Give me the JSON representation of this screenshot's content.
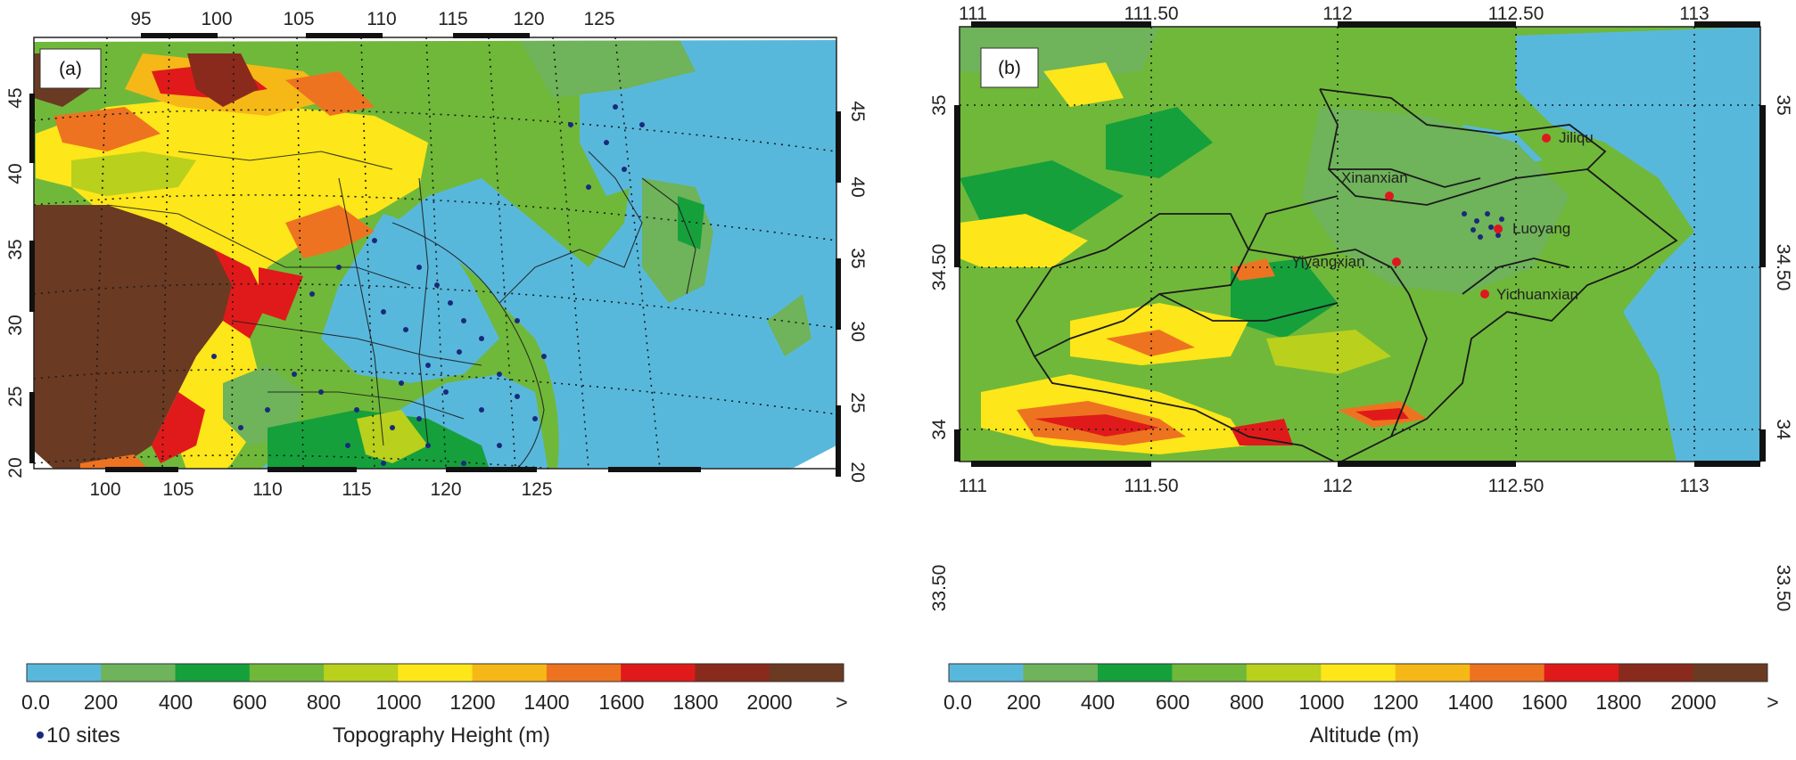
{
  "panels": [
    {
      "id": "a",
      "label": "(a)",
      "top_ticks": [
        "95",
        "100",
        "105",
        "110",
        "115",
        "120",
        "125"
      ],
      "bottom_ticks": [
        "100",
        "105",
        "110",
        "115",
        "120",
        "125"
      ],
      "left_ticks": [
        "45",
        "40",
        "35",
        "30",
        "25",
        "20"
      ],
      "right_ticks": [
        "45",
        "40",
        "35",
        "30",
        "25",
        "20"
      ],
      "colorbar_labels": [
        "0.0",
        "200",
        "400",
        "600",
        "800",
        "1000",
        "1200",
        "1400",
        "1600",
        "1800",
        "2000",
        ">"
      ],
      "colorbar_title": "Topography Height (m)",
      "legend_marker_label": "10 sites"
    },
    {
      "id": "b",
      "label": "(b)",
      "top_ticks": [
        "111",
        "111.50",
        "112",
        "112.50",
        "113"
      ],
      "bottom_ticks": [
        "111",
        "111.50",
        "112",
        "112.50",
        "113"
      ],
      "left_ticks": [
        "35",
        "34.50",
        "34",
        "33.50"
      ],
      "right_ticks": [
        "35",
        "34.50",
        "34",
        "33.50"
      ],
      "colorbar_labels": [
        "0.0",
        "200",
        "400",
        "600",
        "800",
        "1000",
        "1200",
        "1400",
        "1600",
        "1800",
        "2000",
        ">"
      ],
      "colorbar_title": "Altitude (m)",
      "cities": [
        "Jiliqu",
        "Xinanxian",
        "Luoyang",
        "Yiyangxian",
        "Yichuanxian"
      ]
    }
  ],
  "colorbar_colors": [
    "#58b8dc",
    "#6fb35a",
    "#15a03c",
    "#70b83a",
    "#b9d01c",
    "#fde619",
    "#f6b817",
    "#ee7320",
    "#e01a1a",
    "#8a2a1c",
    "#6b3a22"
  ],
  "sea_color": "#58b8dc",
  "marker_color": "#1a2a7a",
  "city_marker_color": "#e0161e"
}
